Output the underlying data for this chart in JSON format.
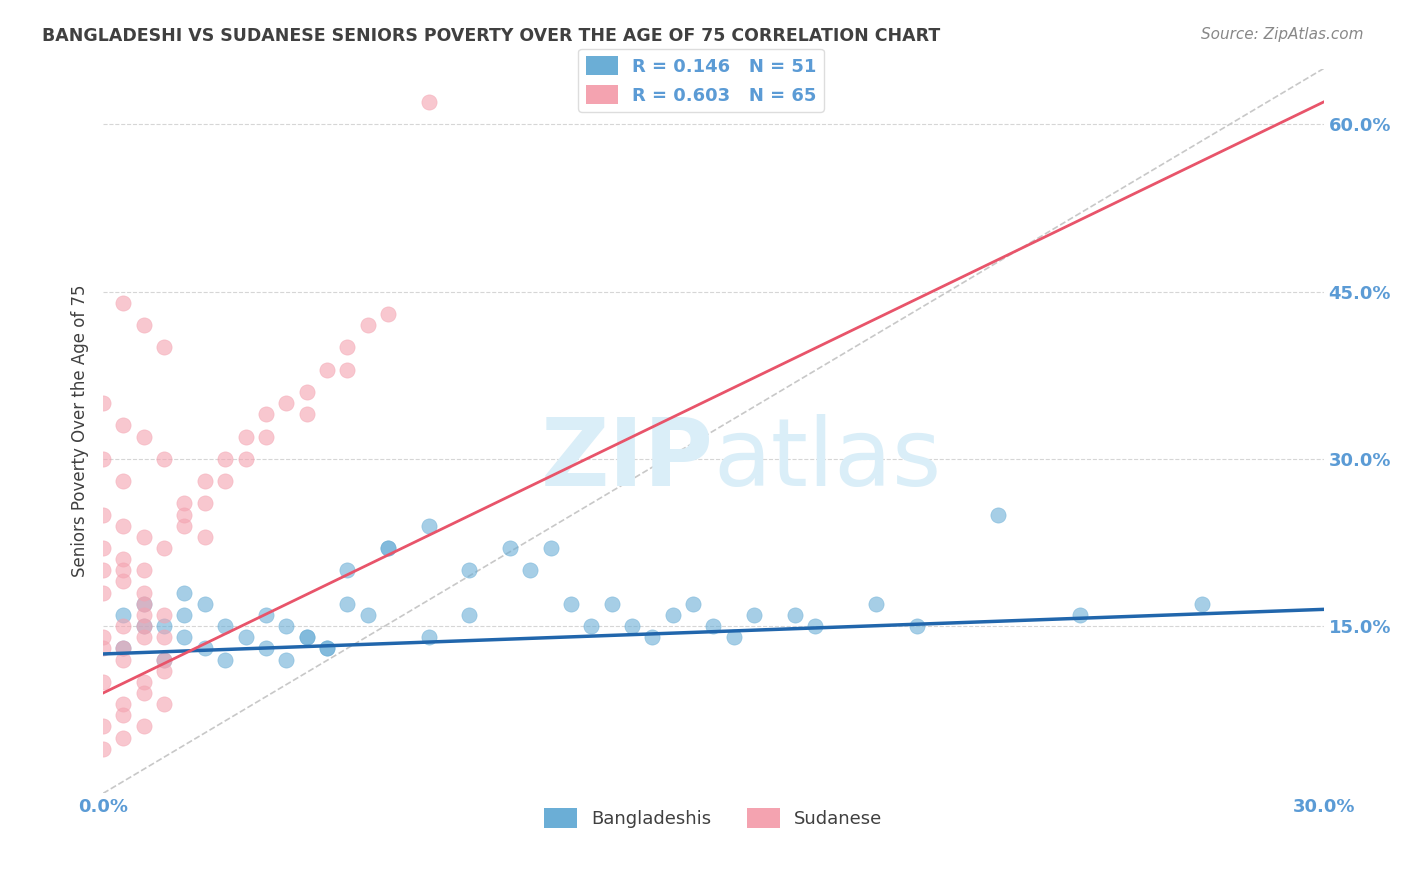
{
  "title": "BANGLADESHI VS SUDANESE SENIORS POVERTY OVER THE AGE OF 75 CORRELATION CHART",
  "source": "Source: ZipAtlas.com",
  "ylabel": "Seniors Poverty Over the Age of 75",
  "xlim": [
    0.0,
    0.3
  ],
  "ylim": [
    0.0,
    0.65
  ],
  "xticks": [
    0.0,
    0.05,
    0.1,
    0.15,
    0.2,
    0.25,
    0.3
  ],
  "xticklabels": [
    "0.0%",
    "",
    "",
    "",
    "",
    "",
    "30.0%"
  ],
  "yticks": [
    0.0,
    0.15,
    0.3,
    0.45,
    0.6
  ],
  "yticklabels": [
    "",
    "15.0%",
    "30.0%",
    "45.0%",
    "60.0%"
  ],
  "R_bangladeshi": 0.146,
  "N_bangladeshi": 51,
  "R_sudanese": 0.603,
  "N_sudanese": 65,
  "color_bangladeshi": "#6baed6",
  "color_sudanese": "#f4a3b0",
  "color_trendline_bangladeshi": "#2166ac",
  "color_trendline_sudanese": "#e8546a",
  "color_diagonal": "#c8c8c8",
  "background_color": "#ffffff",
  "grid_color": "#cccccc",
  "title_color": "#404040",
  "tick_color": "#5b9bd5",
  "watermark_color": "#daeef8",
  "legend_R_color": "#5b9bd5",
  "bangladeshi_x": [
    0.005,
    0.01,
    0.015,
    0.005,
    0.02,
    0.01,
    0.025,
    0.015,
    0.03,
    0.02,
    0.035,
    0.025,
    0.04,
    0.03,
    0.045,
    0.02,
    0.05,
    0.04,
    0.055,
    0.045,
    0.06,
    0.05,
    0.065,
    0.055,
    0.07,
    0.06,
    0.08,
    0.07,
    0.09,
    0.08,
    0.1,
    0.09,
    0.11,
    0.105,
    0.12,
    0.115,
    0.13,
    0.125,
    0.14,
    0.135,
    0.15,
    0.145,
    0.16,
    0.155,
    0.17,
    0.175,
    0.19,
    0.2,
    0.22,
    0.24,
    0.27
  ],
  "bangladeshi_y": [
    0.13,
    0.15,
    0.12,
    0.16,
    0.14,
    0.17,
    0.13,
    0.15,
    0.12,
    0.16,
    0.14,
    0.17,
    0.13,
    0.15,
    0.12,
    0.18,
    0.14,
    0.16,
    0.13,
    0.15,
    0.17,
    0.14,
    0.16,
    0.13,
    0.22,
    0.2,
    0.24,
    0.22,
    0.16,
    0.14,
    0.22,
    0.2,
    0.22,
    0.2,
    0.15,
    0.17,
    0.15,
    0.17,
    0.16,
    0.14,
    0.15,
    0.17,
    0.16,
    0.14,
    0.16,
    0.15,
    0.17,
    0.15,
    0.25,
    0.16,
    0.17
  ],
  "sudanese_x": [
    0.0,
    0.0,
    0.005,
    0.005,
    0.005,
    0.01,
    0.01,
    0.01,
    0.015,
    0.015,
    0.0,
    0.0,
    0.005,
    0.01,
    0.015,
    0.0,
    0.005,
    0.01,
    0.0,
    0.005,
    0.01,
    0.015,
    0.02,
    0.02,
    0.025,
    0.025,
    0.03,
    0.03,
    0.035,
    0.035,
    0.04,
    0.04,
    0.045,
    0.05,
    0.05,
    0.055,
    0.06,
    0.06,
    0.065,
    0.07,
    0.005,
    0.01,
    0.015,
    0.0,
    0.005,
    0.01,
    0.0,
    0.005,
    0.01,
    0.015,
    0.0,
    0.005,
    0.0,
    0.005,
    0.01,
    0.015,
    0.005,
    0.01,
    0.0,
    0.005,
    0.01,
    0.015,
    0.02,
    0.025,
    0.08
  ],
  "sudanese_y": [
    0.13,
    0.1,
    0.12,
    0.15,
    0.08,
    0.14,
    0.16,
    0.1,
    0.12,
    0.11,
    0.18,
    0.2,
    0.19,
    0.17,
    0.16,
    0.22,
    0.21,
    0.2,
    0.25,
    0.24,
    0.23,
    0.22,
    0.26,
    0.24,
    0.28,
    0.26,
    0.3,
    0.28,
    0.32,
    0.3,
    0.34,
    0.32,
    0.35,
    0.36,
    0.34,
    0.38,
    0.4,
    0.38,
    0.42,
    0.43,
    0.44,
    0.42,
    0.4,
    0.06,
    0.07,
    0.09,
    0.04,
    0.05,
    0.06,
    0.08,
    0.3,
    0.28,
    0.14,
    0.13,
    0.15,
    0.14,
    0.2,
    0.18,
    0.35,
    0.33,
    0.32,
    0.3,
    0.25,
    0.23,
    0.62
  ]
}
